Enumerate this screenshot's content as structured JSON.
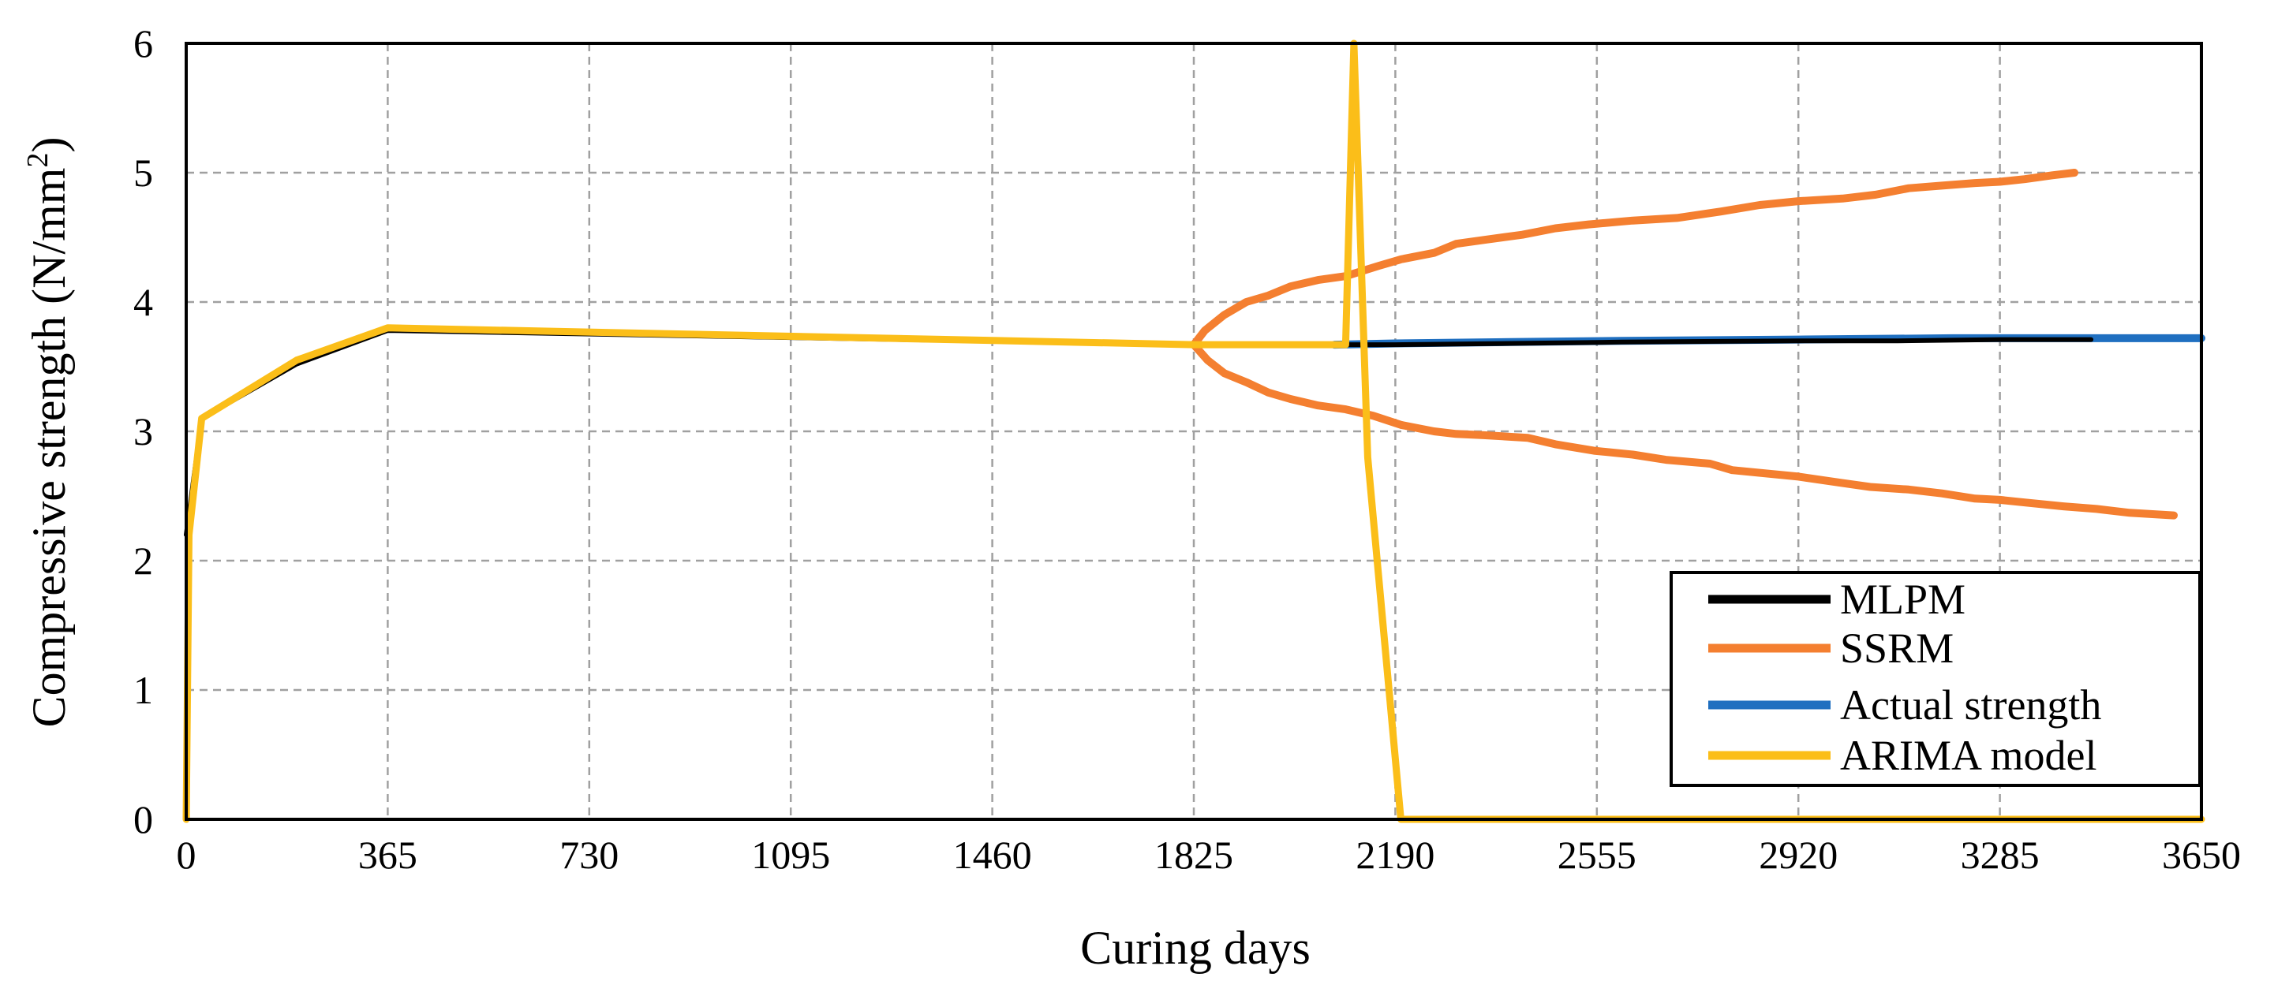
{
  "chart_data": {
    "type": "line",
    "title": "",
    "xlabel": "Curing days",
    "ylabel_main": "Compressive strength (N/mm",
    "ylabel_sup": "2",
    "ylabel_close": ")",
    "xlim": [
      0,
      3650
    ],
    "ylim": [
      0,
      6
    ],
    "xticks": [
      0,
      365,
      730,
      1095,
      1460,
      1825,
      2190,
      2555,
      2920,
      3285,
      3650
    ],
    "yticks": [
      0,
      1,
      2,
      3,
      4,
      5,
      6
    ],
    "grid": true,
    "legend_position": "bottom-right",
    "series": [
      {
        "name": "MLPM",
        "color": "#000000",
        "x": [
          0,
          28,
          200,
          365,
          1825,
          2000,
          2190,
          2400,
          2600,
          2920,
          3100,
          3285,
          3450
        ],
        "y": [
          2.2,
          3.1,
          3.52,
          3.78,
          3.67,
          3.67,
          3.67,
          3.68,
          3.69,
          3.7,
          3.7,
          3.71,
          3.71
        ]
      },
      {
        "name": "SSRM",
        "color": "#F47F30",
        "x": [
          1825,
          1845,
          1880,
          1920,
          1960,
          2000,
          2050,
          2100,
          2160,
          2200,
          2260,
          2300,
          2350,
          2420,
          2480,
          2540,
          2620,
          2700,
          2780,
          2850,
          2920,
          3000,
          3060,
          3120,
          3180,
          3240,
          3285,
          3330,
          3380,
          3420
        ],
        "y": [
          3.67,
          3.78,
          3.9,
          4.0,
          4.05,
          4.12,
          4.17,
          4.2,
          4.28,
          4.33,
          4.38,
          4.45,
          4.48,
          4.52,
          4.57,
          4.6,
          4.63,
          4.65,
          4.7,
          4.75,
          4.78,
          4.8,
          4.83,
          4.88,
          4.9,
          4.92,
          4.93,
          4.95,
          4.98,
          5.0
        ],
        "lower": {
          "x": [
            1825,
            1850,
            1880,
            1920,
            1960,
            2000,
            2050,
            2100,
            2150,
            2200,
            2260,
            2300,
            2350,
            2430,
            2480,
            2550,
            2620,
            2680,
            2760,
            2800,
            2920,
            3000,
            3050,
            3120,
            3180,
            3240,
            3285,
            3330,
            3400,
            3460,
            3520,
            3600
          ],
          "y": [
            3.67,
            3.55,
            3.45,
            3.38,
            3.3,
            3.25,
            3.2,
            3.17,
            3.12,
            3.05,
            3.0,
            2.98,
            2.97,
            2.95,
            2.9,
            2.85,
            2.82,
            2.78,
            2.75,
            2.7,
            2.65,
            2.6,
            2.57,
            2.55,
            2.52,
            2.48,
            2.47,
            2.45,
            2.42,
            2.4,
            2.37,
            2.35
          ]
        }
      },
      {
        "name": "Actual strength",
        "color": "#1F6FC0",
        "x": [
          2080,
          2190,
          2400,
          2600,
          2920,
          3200,
          3650
        ],
        "y": [
          3.67,
          3.68,
          3.69,
          3.7,
          3.71,
          3.72,
          3.72
        ]
      },
      {
        "name": "ARIMA model",
        "color": "#FBBE19",
        "x": [
          0,
          5,
          28,
          200,
          365,
          1825,
          2080,
          2100,
          2115,
          2140,
          2200,
          3650
        ],
        "y": [
          0,
          2.2,
          3.1,
          3.55,
          3.8,
          3.67,
          3.67,
          3.67,
          6.0,
          2.8,
          0,
          0
        ]
      }
    ]
  }
}
